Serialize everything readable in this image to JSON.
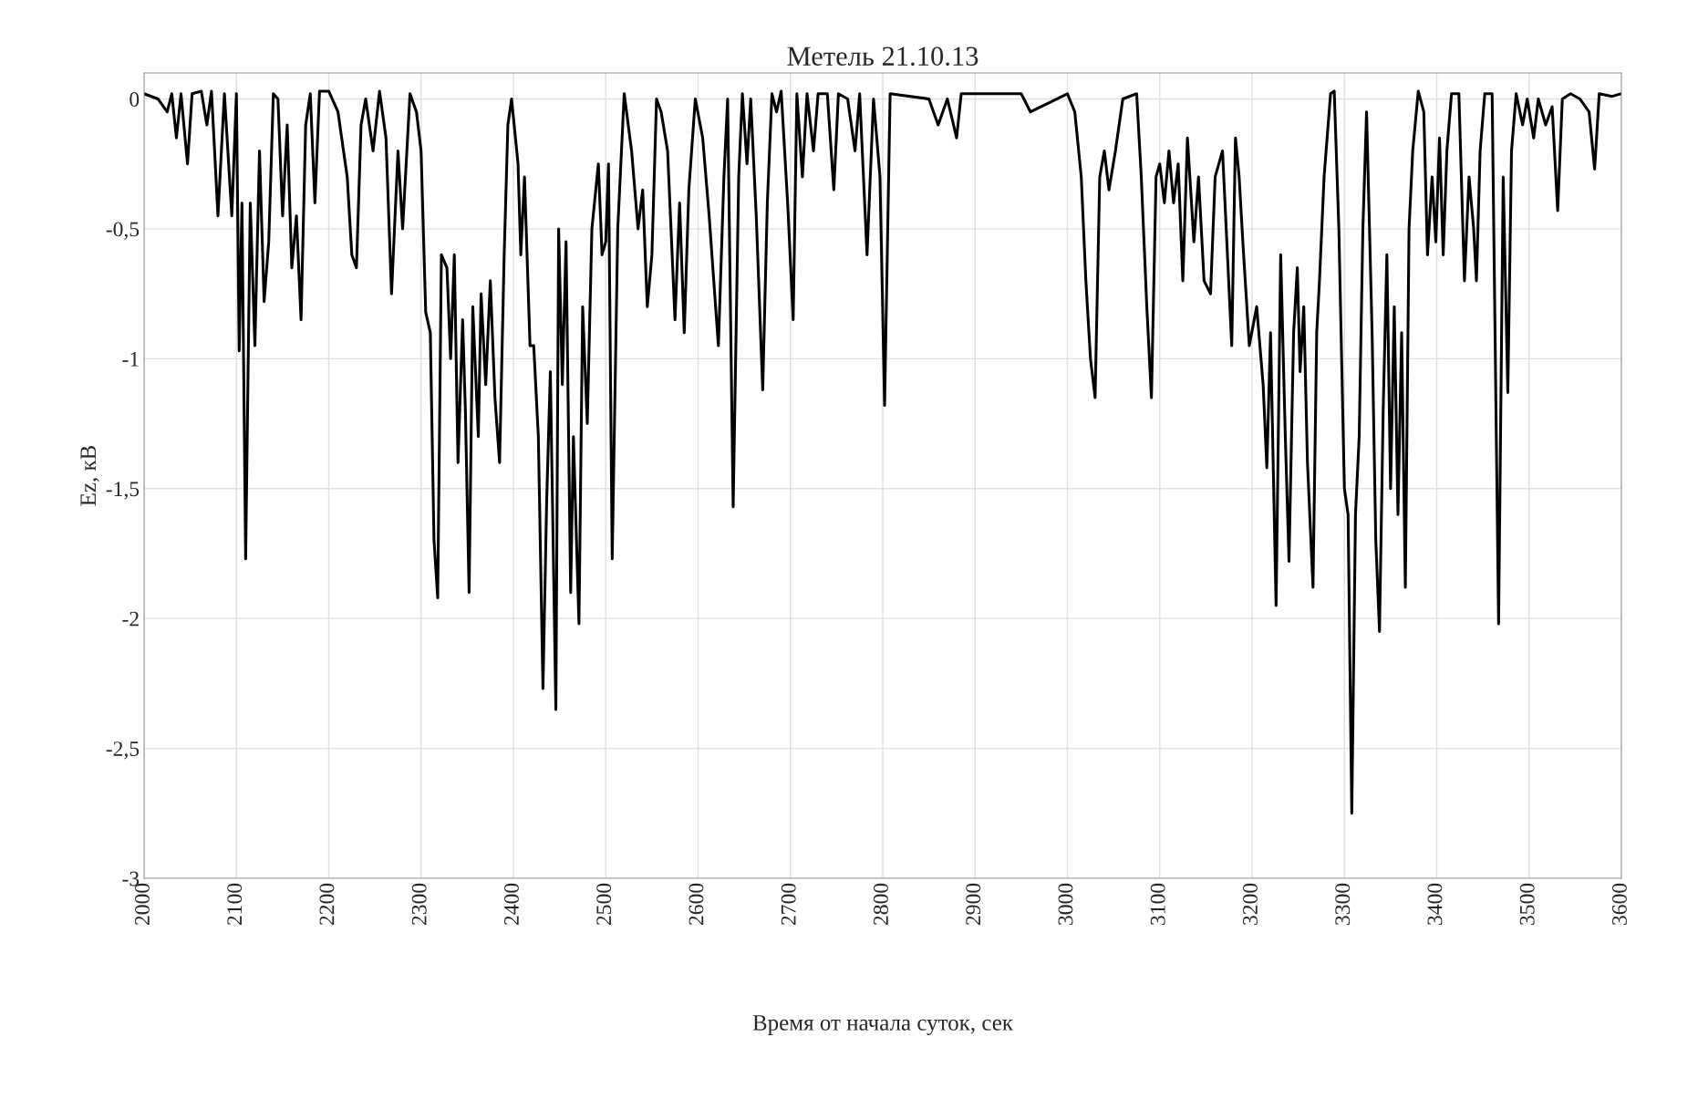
{
  "chart_data": {
    "type": "line",
    "title": "Метель 21.10.13",
    "xlabel": "Время от начала суток, сек",
    "ylabel": "Ez, кВ",
    "xlim": [
      2000,
      3600
    ],
    "xticks": [
      2000,
      2100,
      2200,
      2300,
      2400,
      2500,
      2600,
      2700,
      2800,
      2900,
      3000,
      3100,
      3200,
      3300,
      3400,
      3500,
      3600
    ],
    "ylim": [
      -3,
      0.1
    ],
    "yticks": [
      {
        "value": 0,
        "label": "0"
      },
      {
        "value": -0.5,
        "label": "-0,5"
      },
      {
        "value": -1,
        "label": "-1"
      },
      {
        "value": -1.5,
        "label": "-1,5"
      },
      {
        "value": -2,
        "label": "-2"
      },
      {
        "value": -2.5,
        "label": "-2,5"
      },
      {
        "value": -3,
        "label": "-3"
      }
    ],
    "grid": true,
    "marker": "none",
    "line_style": "solid",
    "series": [
      {
        "color": "#000000",
        "x": [
          2000,
          2015,
          2025,
          2030,
          2035,
          2040,
          2047,
          2052,
          2062,
          2068,
          2073,
          2080,
          2087,
          2095,
          2100,
          2103,
          2106,
          2110,
          2115,
          2120,
          2125,
          2130,
          2135,
          2140,
          2145,
          2150,
          2155,
          2160,
          2165,
          2170,
          2175,
          2180,
          2185,
          2190,
          2200,
          2210,
          2220,
          2225,
          2230,
          2235,
          2240,
          2248,
          2255,
          2262,
          2268,
          2275,
          2280,
          2288,
          2295,
          2300,
          2305,
          2310,
          2314,
          2318,
          2322,
          2328,
          2332,
          2336,
          2340,
          2345,
          2348,
          2352,
          2356,
          2362,
          2365,
          2370,
          2375,
          2380,
          2385,
          2390,
          2394,
          2398,
          2405,
          2408,
          2412,
          2418,
          2422,
          2427,
          2432,
          2436,
          2440,
          2446,
          2449,
          2453,
          2457,
          2462,
          2465,
          2471,
          2475,
          2480,
          2485,
          2492,
          2496,
          2500,
          2503,
          2507,
          2513,
          2520,
          2528,
          2535,
          2540,
          2545,
          2550,
          2555,
          2560,
          2567,
          2575,
          2580,
          2585,
          2590,
          2597,
          2605,
          2612,
          2622,
          2628,
          2632,
          2638,
          2644,
          2648,
          2653,
          2657,
          2663,
          2670,
          2675,
          2680,
          2685,
          2690,
          2697,
          2703,
          2707,
          2713,
          2718,
          2725,
          2730,
          2740,
          2747,
          2752,
          2762,
          2770,
          2775,
          2783,
          2790,
          2797,
          2802,
          2808,
          2850,
          2860,
          2870,
          2880,
          2885,
          2950,
          2960,
          3000,
          3008,
          3015,
          3020,
          3025,
          3030,
          3035,
          3040,
          3045,
          3052,
          3060,
          3075,
          3080,
          3086,
          3091,
          3096,
          3100,
          3105,
          3110,
          3115,
          3120,
          3125,
          3130,
          3137,
          3142,
          3148,
          3155,
          3160,
          3168,
          3172,
          3178,
          3182,
          3186,
          3190,
          3197,
          3205,
          3212,
          3216,
          3220,
          3226,
          3231,
          3236,
          3240,
          3245,
          3249,
          3252,
          3256,
          3260,
          3266,
          3270,
          3273,
          3278,
          3285,
          3289,
          3294,
          3300,
          3304,
          3308,
          3312,
          3316,
          3320,
          3324,
          3330,
          3334,
          3338,
          3342,
          3346,
          3350,
          3354,
          3358,
          3362,
          3366,
          3370,
          3374,
          3380,
          3386,
          3390,
          3395,
          3399,
          3403,
          3407,
          3411,
          3416,
          3424,
          3430,
          3435,
          3440,
          3443,
          3447,
          3452,
          3460,
          3467,
          3472,
          3477,
          3481,
          3486,
          3493,
          3498,
          3505,
          3510,
          3518,
          3525,
          3531,
          3536,
          3545,
          3555,
          3565,
          3571,
          3576,
          3590,
          3600
        ],
        "values": [
          0.02,
          0.0,
          -0.05,
          0.02,
          -0.15,
          0.02,
          -0.25,
          0.02,
          0.03,
          -0.1,
          0.03,
          -0.45,
          0.02,
          -0.45,
          0.02,
          -0.97,
          -0.4,
          -1.77,
          -0.4,
          -0.95,
          -0.2,
          -0.78,
          -0.55,
          0.02,
          0.0,
          -0.45,
          -0.1,
          -0.65,
          -0.45,
          -0.85,
          -0.1,
          0.02,
          -0.4,
          0.03,
          0.03,
          -0.05,
          -0.3,
          -0.6,
          -0.65,
          -0.1,
          0.0,
          -0.2,
          0.03,
          -0.15,
          -0.75,
          -0.2,
          -0.5,
          0.02,
          -0.05,
          -0.2,
          -0.82,
          -0.9,
          -1.7,
          -1.92,
          -0.6,
          -0.65,
          -1.0,
          -0.6,
          -1.4,
          -0.85,
          -1.2,
          -1.9,
          -0.8,
          -1.3,
          -0.75,
          -1.1,
          -0.7,
          -1.15,
          -1.4,
          -0.6,
          -0.1,
          0.0,
          -0.25,
          -0.6,
          -0.3,
          -0.95,
          -0.95,
          -1.3,
          -2.27,
          -1.55,
          -1.05,
          -2.35,
          -0.5,
          -1.1,
          -0.55,
          -1.9,
          -1.3,
          -2.02,
          -0.8,
          -1.25,
          -0.5,
          -0.25,
          -0.6,
          -0.55,
          -0.25,
          -1.77,
          -0.5,
          0.02,
          -0.2,
          -0.5,
          -0.35,
          -0.8,
          -0.6,
          0.0,
          -0.05,
          -0.2,
          -0.85,
          -0.4,
          -0.9,
          -0.35,
          0.0,
          -0.15,
          -0.45,
          -0.95,
          -0.3,
          0.0,
          -1.57,
          -0.3,
          0.02,
          -0.25,
          0.0,
          -0.45,
          -1.12,
          -0.4,
          0.02,
          -0.05,
          0.03,
          -0.4,
          -0.85,
          0.02,
          -0.3,
          0.02,
          -0.2,
          0.02,
          0.02,
          -0.35,
          0.02,
          0.0,
          -0.2,
          0.02,
          -0.6,
          0.0,
          -0.3,
          -1.18,
          0.02,
          0.0,
          -0.1,
          0.0,
          -0.15,
          0.02,
          0.02,
          -0.05,
          0.02,
          -0.05,
          -0.3,
          -0.7,
          -1.0,
          -1.15,
          -0.3,
          -0.2,
          -0.35,
          -0.2,
          0.0,
          0.02,
          -0.3,
          -0.8,
          -1.15,
          -0.3,
          -0.25,
          -0.4,
          -0.2,
          -0.4,
          -0.25,
          -0.7,
          -0.15,
          -0.55,
          -0.3,
          -0.7,
          -0.75,
          -0.3,
          -0.2,
          -0.5,
          -0.95,
          -0.15,
          -0.3,
          -0.55,
          -0.95,
          -0.8,
          -1.1,
          -1.42,
          -0.9,
          -1.95,
          -0.6,
          -1.3,
          -1.78,
          -0.9,
          -0.65,
          -1.05,
          -0.8,
          -1.4,
          -1.88,
          -0.9,
          -0.7,
          -0.3,
          0.02,
          0.03,
          -0.5,
          -1.5,
          -1.6,
          -2.75,
          -1.6,
          -1.3,
          -0.5,
          -0.05,
          -0.9,
          -1.7,
          -2.05,
          -1.2,
          -0.6,
          -1.5,
          -0.8,
          -1.6,
          -0.9,
          -1.88,
          -0.5,
          -0.2,
          0.03,
          -0.05,
          -0.6,
          -0.3,
          -0.55,
          -0.15,
          -0.6,
          -0.2,
          0.02,
          0.02,
          -0.7,
          -0.3,
          -0.5,
          -0.7,
          -0.2,
          0.02,
          0.02,
          -2.02,
          -0.3,
          -1.13,
          -0.2,
          0.02,
          -0.1,
          0.0,
          -0.15,
          0.0,
          -0.1,
          -0.03,
          -0.43,
          0.0,
          0.02,
          0.0,
          -0.05,
          -0.27,
          0.02,
          0.01,
          0.02
        ]
      }
    ]
  }
}
